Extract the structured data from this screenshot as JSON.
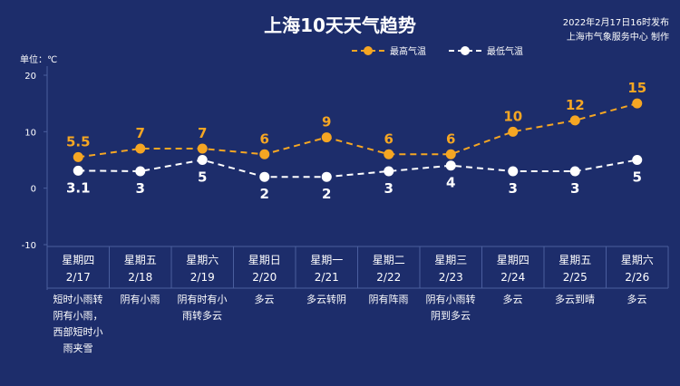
{
  "header": {
    "title": "上海10天天气趋势",
    "date": "2022年2月17日16时发布",
    "source": "上海市气象服务中心 制作",
    "unit": "单位：℃"
  },
  "colors": {
    "background": "#1d2d6b",
    "high": "#f5a623",
    "low": "#ffffff",
    "line": "#4a5e9e"
  },
  "chart_data": {
    "type": "line",
    "title": "上海10天天气趋势",
    "ylabel": "单位：℃",
    "ylim": [
      -10,
      20
    ],
    "yticks": [
      20,
      10,
      0,
      -10
    ],
    "legend_position": "top-right",
    "grid": false,
    "weekdays": [
      "星期四",
      "星期五",
      "星期六",
      "星期日",
      "星期一",
      "星期二",
      "星期三",
      "星期四",
      "星期五",
      "星期六"
    ],
    "dates": [
      "2/17",
      "2/18",
      "2/19",
      "2/20",
      "2/21",
      "2/22",
      "2/23",
      "2/24",
      "2/25",
      "2/26"
    ],
    "series": [
      {
        "name": "最高气温",
        "values": [
          5.5,
          7,
          7,
          6,
          9,
          6,
          6,
          10,
          12,
          15
        ],
        "labels": [
          "5.5",
          "7",
          "7",
          "6",
          "9",
          "6",
          "6",
          "10",
          "12",
          "15"
        ]
      },
      {
        "name": "最低气温",
        "values": [
          3.1,
          3,
          5,
          2,
          2,
          3,
          4,
          3,
          3,
          5
        ],
        "labels": [
          "3.1",
          "3",
          "5",
          "2",
          "2",
          "3",
          "4",
          "3",
          "3",
          "5"
        ]
      }
    ],
    "weather": [
      [
        "短时小雨转",
        "阴有小雨，",
        "西部短时小",
        "雨夹雪"
      ],
      [
        "阴有小雨"
      ],
      [
        "阴有时有小",
        "雨转多云"
      ],
      [
        "多云"
      ],
      [
        "多云转阴"
      ],
      [
        "阴有阵雨"
      ],
      [
        "阴有小雨转",
        "阴到多云"
      ],
      [
        "多云"
      ],
      [
        "多云到晴"
      ],
      [
        "多云"
      ]
    ]
  }
}
